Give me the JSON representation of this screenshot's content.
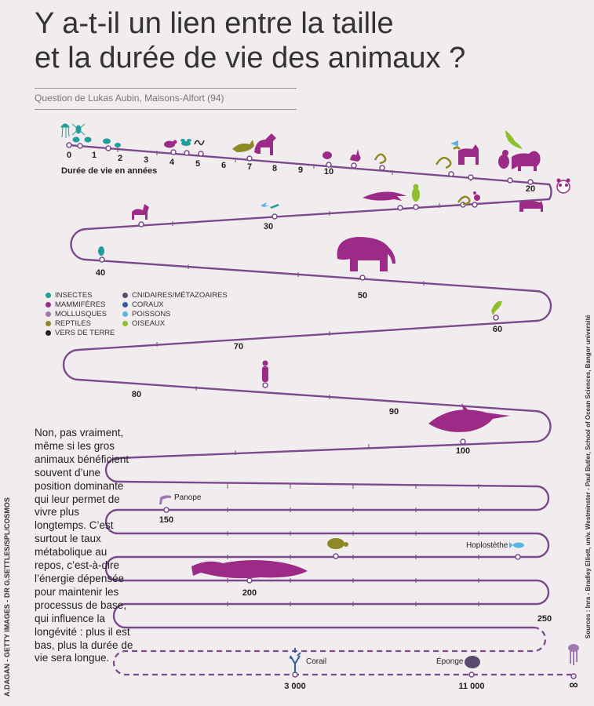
{
  "title": {
    "line1": "Y a-t-il un lien entre la taille",
    "line2": "et la durée de vie des animaux ?"
  },
  "subtitle": "Question de Lukas Aubin, Maisons-Alfort (94)",
  "axis_label": "Durée de vie en années",
  "legend": [
    {
      "label": "INSECTES",
      "color": "#1f9e9b"
    },
    {
      "label": "MAMMIFÈRES",
      "color": "#9c2a87"
    },
    {
      "label": "MOLLUSQUES",
      "color": "#a07bb2"
    },
    {
      "label": "REPTILES",
      "color": "#8d8a25"
    },
    {
      "label": "VERS DE TERRE",
      "color": "#222222"
    },
    {
      "label": "CNIDAIRES/MÉTAZOAIRES",
      "color": "#5a4a6e"
    },
    {
      "label": "CORAUX",
      "color": "#2e5f9a"
    },
    {
      "label": "POISSONS",
      "color": "#5ab7e0"
    },
    {
      "label": "OISEAUX",
      "color": "#8fbf2e"
    }
  ],
  "ticks": [
    "0",
    "1",
    "2",
    "3",
    "4",
    "5",
    "6",
    "7",
    "8",
    "9",
    "10",
    "20",
    "30",
    "40",
    "50",
    "60",
    "70",
    "80",
    "90",
    "100",
    "150",
    "200",
    "250",
    "3 000",
    "11 000",
    "∞"
  ],
  "labels": {
    "panope": "Panope",
    "hoplostethe": "Hoplostèthe",
    "corail": "Corail",
    "eponge": "Éponge"
  },
  "paragraph": "Non, pas vraiment, même si les gros animaux bénéficient souvent d’une position dominante qui leur permet de vivre plus longtemps. C’est surtout le taux métabolique au repos, c’est-à-dire l’énergie dépensée pour maintenir les processus de base, qui influence la longévité : plus il est bas, plus la durée de vie sera longue.",
  "credits": {
    "left": "A.DAGAN - GETTY IMAGES - DR G.SETTLES/SPL/COSMOS",
    "right": "Sources : Inra - Bradley Elliott, univ. Westminster - Paul Butler, School of Ocean Sciences, Bangor université"
  },
  "colors": {
    "path": "#7b4a8c",
    "mammal": "#9c2a87",
    "insect": "#1f9e9b",
    "reptile": "#8d8a25",
    "bird": "#8fbf2e",
    "fish": "#5ab7e0",
    "coral": "#2e5f9a",
    "cnidaire": "#5a4a6e",
    "mollusc": "#a07bb2"
  },
  "icons": [
    "jellyfish-icon",
    "insect-icon",
    "mouse-icon",
    "worm-icon",
    "fox-icon",
    "wolf-icon",
    "hedgehog-icon",
    "rabbit-icon",
    "snake-icon",
    "cat-icon",
    "eagle-icon",
    "monkey-icon",
    "lion-icon",
    "panda-icon",
    "cow-icon",
    "goat-icon",
    "dolphin-icon",
    "penguin-icon",
    "fish-icon",
    "bee-icon",
    "elephant-icon",
    "parrot-icon",
    "human-icon",
    "orca-icon",
    "turtle-icon",
    "whale-icon",
    "coral-icon",
    "sponge-icon"
  ]
}
